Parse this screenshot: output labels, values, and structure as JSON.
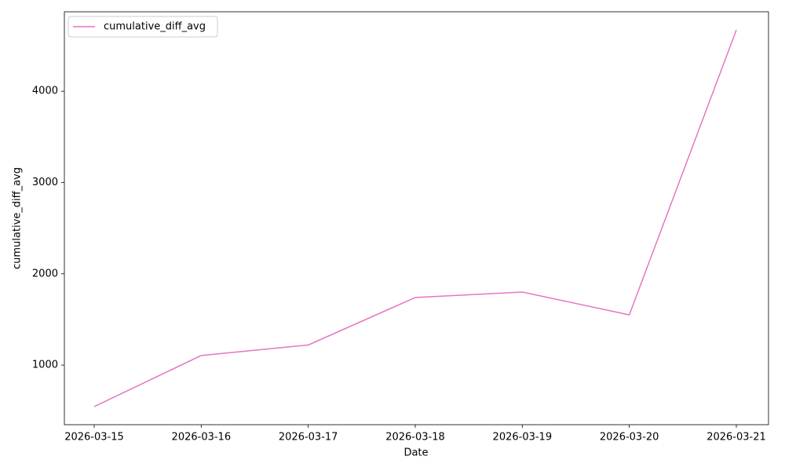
{
  "chart_data": {
    "type": "line",
    "xlabel": "Date",
    "ylabel": "cumulative_diff_avg",
    "categories": [
      "2026-03-15",
      "2026-03-16",
      "2026-03-17",
      "2026-03-18",
      "2026-03-19",
      "2026-03-20",
      "2026-03-21"
    ],
    "series": [
      {
        "name": "cumulative_diff_avg",
        "color": "#e377c2",
        "values": [
          545,
          1105,
          1220,
          1740,
          1800,
          1550,
          4670
        ]
      }
    ],
    "ylim": [
      347,
      4870
    ],
    "yticks": [
      1000,
      2000,
      3000,
      4000
    ],
    "legend": "upper left",
    "grid": false
  }
}
